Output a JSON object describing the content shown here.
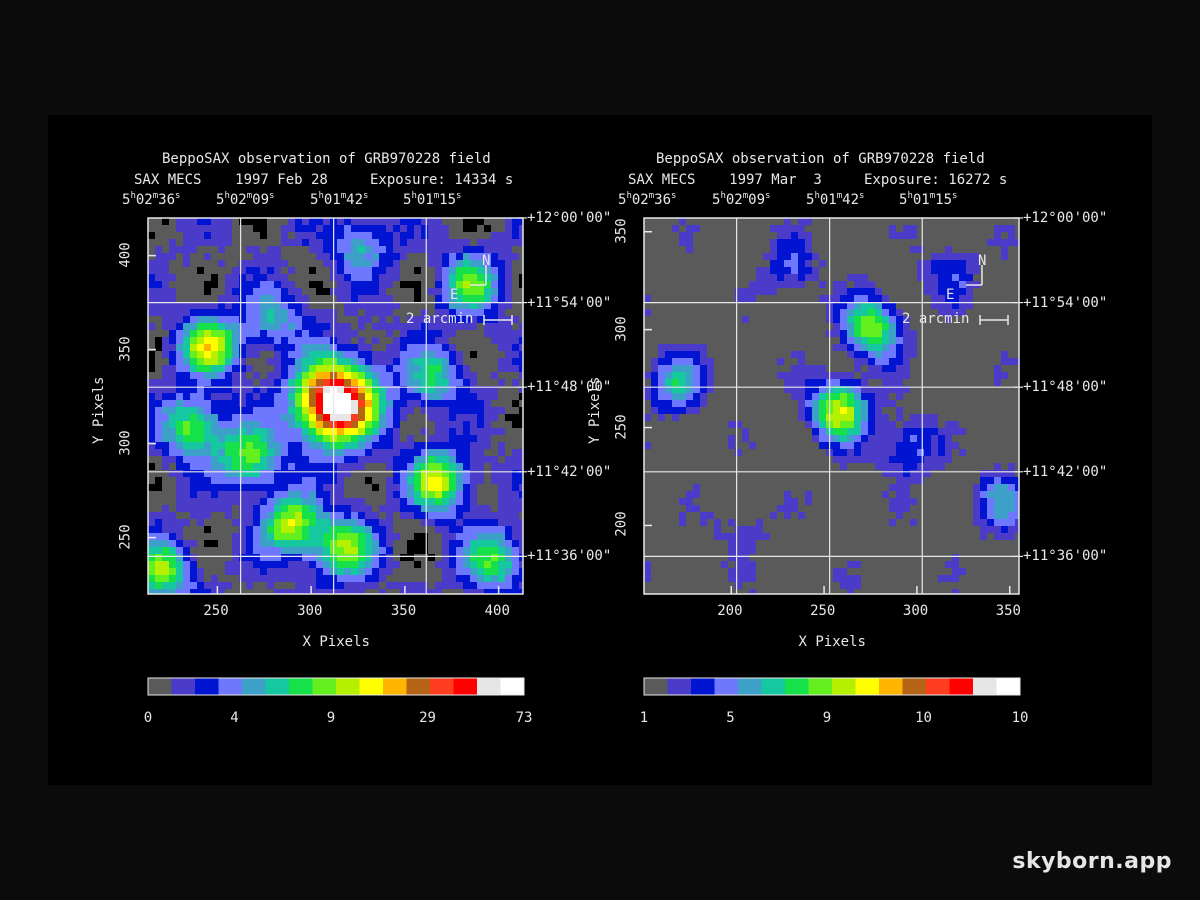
{
  "watermark": "skyborn.app",
  "chart_data": [
    {
      "type": "heatmap",
      "title": "BeppoSAX observation of GRB970228 field",
      "subtitle": "SAX MECS    1997 Feb 28     Exposure: 14334 s",
      "xlabel": "X Pixels",
      "ylabel": "Y Pixels",
      "xlim": [
        213,
        413
      ],
      "ylim": [
        220,
        420
      ],
      "x_ticks": [
        250,
        300,
        350,
        400
      ],
      "y_ticks": [
        250,
        300,
        350,
        400
      ],
      "ra_ticks": [
        [
          "5",
          "h",
          "02",
          "m",
          "36",
          "s"
        ],
        [
          "5",
          "h",
          "02",
          "m",
          "09",
          "s"
        ],
        [
          "5",
          "h",
          "01",
          "m",
          "42",
          "s"
        ],
        [
          "5",
          "h",
          "01",
          "m",
          "15",
          "s"
        ]
      ],
      "dec_ticks": [
        "+12°00'00\"",
        "+11°54'00\"",
        "+11°48'00\"",
        "+11°42'00\"",
        "+11°36'00\""
      ],
      "compass": {
        "north": "N",
        "east": "E"
      },
      "scale_bar": "2 arcmin",
      "colorbar_labels": [
        "0",
        "4",
        "9",
        "29",
        "73"
      ],
      "grid": true,
      "background_level": 1,
      "sources": [
        {
          "x": 313,
          "y": 322,
          "peak": 16
        },
        {
          "x": 246,
          "y": 352,
          "peak": 8
        },
        {
          "x": 237,
          "y": 309,
          "peak": 7
        },
        {
          "x": 267,
          "y": 293,
          "peak": 7
        },
        {
          "x": 290,
          "y": 257,
          "peak": 8
        },
        {
          "x": 368,
          "y": 280,
          "peak": 8
        },
        {
          "x": 318,
          "y": 244,
          "peak": 7
        },
        {
          "x": 385,
          "y": 385,
          "peak": 6
        },
        {
          "x": 220,
          "y": 232,
          "peak": 7
        },
        {
          "x": 397,
          "y": 238,
          "peak": 6
        },
        {
          "x": 326,
          "y": 405,
          "peak": 4
        },
        {
          "x": 280,
          "y": 367,
          "peak": 4
        },
        {
          "x": 365,
          "y": 335,
          "peak": 5
        }
      ]
    },
    {
      "type": "heatmap",
      "title": "BeppoSAX observation of GRB970228 field",
      "subtitle": "SAX MECS    1997 Mar  3     Exposure: 16272 s",
      "xlabel": "X Pixels",
      "ylabel": "Y Pixels",
      "xlim": [
        153,
        355
      ],
      "ylim": [
        165,
        357
      ],
      "x_ticks": [
        200,
        250,
        300,
        350
      ],
      "y_ticks": [
        200,
        250,
        300,
        350
      ],
      "ra_ticks": [
        [
          "5",
          "h",
          "02",
          "m",
          "36",
          "s"
        ],
        [
          "5",
          "h",
          "02",
          "m",
          "09",
          "s"
        ],
        [
          "5",
          "h",
          "01",
          "m",
          "42",
          "s"
        ],
        [
          "5",
          "h",
          "01",
          "m",
          "15",
          "s"
        ]
      ],
      "dec_ticks": [
        "+12°00'00\"",
        "+11°54'00\"",
        "+11°48'00\"",
        "+11°42'00\"",
        "+11°36'00\""
      ],
      "compass": {
        "north": "N",
        "east": "E"
      },
      "scale_bar": "2 arcmin",
      "colorbar_labels": [
        "1",
        "5",
        "9",
        "10",
        "10"
      ],
      "grid": true,
      "background_level": 0,
      "sources": [
        {
          "x": 258,
          "y": 259,
          "peak": 9
        },
        {
          "x": 276,
          "y": 301,
          "peak": 8
        },
        {
          "x": 170,
          "y": 272,
          "peak": 5
        },
        {
          "x": 295,
          "y": 240,
          "peak": 4
        },
        {
          "x": 345,
          "y": 213,
          "peak": 4
        },
        {
          "x": 232,
          "y": 330,
          "peak": 3
        },
        {
          "x": 205,
          "y": 200,
          "peak": 2
        },
        {
          "x": 318,
          "y": 330,
          "peak": 3
        }
      ]
    }
  ]
}
